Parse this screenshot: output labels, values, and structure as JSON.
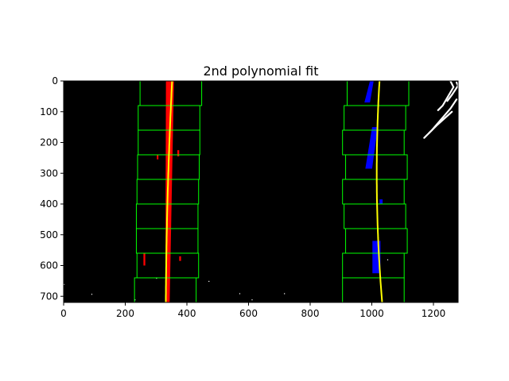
{
  "chart_data": {
    "type": "image",
    "title": "2nd polynomial fit",
    "xlim": [
      0,
      1280
    ],
    "ylim": [
      720,
      0
    ],
    "x_ticks": [
      0,
      200,
      400,
      600,
      800,
      1000,
      1200
    ],
    "y_ticks": [
      0,
      100,
      200,
      300,
      400,
      500,
      600,
      700
    ],
    "x_tick_labels": [
      "0",
      "200",
      "400",
      "600",
      "800",
      "1000",
      "1200"
    ],
    "y_tick_labels": [
      "0",
      "100",
      "200",
      "300",
      "400",
      "500",
      "600",
      "700"
    ],
    "colors": {
      "background": "#000000",
      "left_lane_pixels": "#ff0000",
      "right_lane_pixels": "#0000ff",
      "other_pixels": "#ffffff",
      "search_windows": "#00ff00",
      "fit_line": "#ffff00"
    },
    "search_windows": {
      "height": 80,
      "rows": [
        {
          "y0": 640,
          "left": [
            230,
            430
          ],
          "right": [
            905,
            1105
          ]
        },
        {
          "y0": 560,
          "left": [
            238,
            438
          ],
          "right": [
            905,
            1105
          ]
        },
        {
          "y0": 480,
          "left": [
            236,
            436
          ],
          "right": [
            915,
            1115
          ]
        },
        {
          "y0": 400,
          "left": [
            236,
            436
          ],
          "right": [
            910,
            1110
          ]
        },
        {
          "y0": 320,
          "left": [
            238,
            438
          ],
          "right": [
            905,
            1105
          ]
        },
        {
          "y0": 240,
          "left": [
            240,
            440
          ],
          "right": [
            915,
            1115
          ]
        },
        {
          "y0": 160,
          "left": [
            242,
            442
          ],
          "right": [
            905,
            1105
          ]
        },
        {
          "y0": 80,
          "left": [
            242,
            442
          ],
          "right": [
            910,
            1110
          ]
        },
        {
          "y0": 0,
          "left": [
            248,
            448
          ],
          "right": [
            920,
            1120
          ]
        }
      ]
    },
    "left_fit": [
      3e-05,
      -0.05,
      352
    ],
    "right_fit": [
      0.0001,
      -0.06,
      1025
    ],
    "left_pixel_blobs": [
      {
        "y0": 0,
        "y1": 720,
        "x_center_top": 345,
        "x_center_bottom": 337,
        "width_top": 26,
        "width_bottom": 14
      },
      {
        "y0": 560,
        "y1": 600,
        "x_center_top": 262,
        "x_center_bottom": 262,
        "width_top": 6,
        "width_bottom": 6
      },
      {
        "y0": 570,
        "y1": 585,
        "x_center_top": 378,
        "x_center_bottom": 378,
        "width_top": 6,
        "width_bottom": 6
      },
      {
        "y0": 225,
        "y1": 245,
        "x_center_top": 372,
        "x_center_bottom": 372,
        "width_top": 6,
        "width_bottom": 6
      },
      {
        "y0": 240,
        "y1": 255,
        "x_center_top": 305,
        "x_center_bottom": 305,
        "width_top": 5,
        "width_bottom": 5
      }
    ],
    "right_pixel_blobs": [
      {
        "y0": 0,
        "y1": 70,
        "x_center_top": 1000,
        "x_center_bottom": 985,
        "width_top": 12,
        "width_bottom": 18
      },
      {
        "y0": 150,
        "y1": 285,
        "x_center_top": 1010,
        "x_center_bottom": 990,
        "width_top": 18,
        "width_bottom": 22
      },
      {
        "y0": 385,
        "y1": 400,
        "x_center_top": 1030,
        "x_center_bottom": 1030,
        "width_top": 10,
        "width_bottom": 10
      },
      {
        "y0": 520,
        "y1": 625,
        "x_center_top": 1015,
        "x_center_bottom": 1015,
        "width_top": 26,
        "width_bottom": 26
      }
    ],
    "white_streaks": [
      [
        [
          1215,
          95
        ],
        [
          1230,
          80
        ],
        [
          1265,
          20
        ],
        [
          1255,
          0
        ]
      ],
      [
        [
          1245,
          65
        ],
        [
          1260,
          45
        ],
        [
          1280,
          15
        ],
        [
          1275,
          5
        ]
      ],
      [
        [
          1170,
          185
        ],
        [
          1195,
          160
        ],
        [
          1255,
          90
        ],
        [
          1275,
          60
        ]
      ],
      [
        [
          1185,
          170
        ],
        [
          1210,
          145
        ],
        [
          1260,
          100
        ]
      ]
    ],
    "white_specks": [
      [
        0,
        660
      ],
      [
        90,
        692
      ],
      [
        300,
        640
      ],
      [
        470,
        650
      ],
      [
        570,
        690
      ],
      [
        715,
        690
      ],
      [
        610,
        710
      ],
      [
        230,
        710
      ],
      [
        1050,
        580
      ]
    ]
  }
}
